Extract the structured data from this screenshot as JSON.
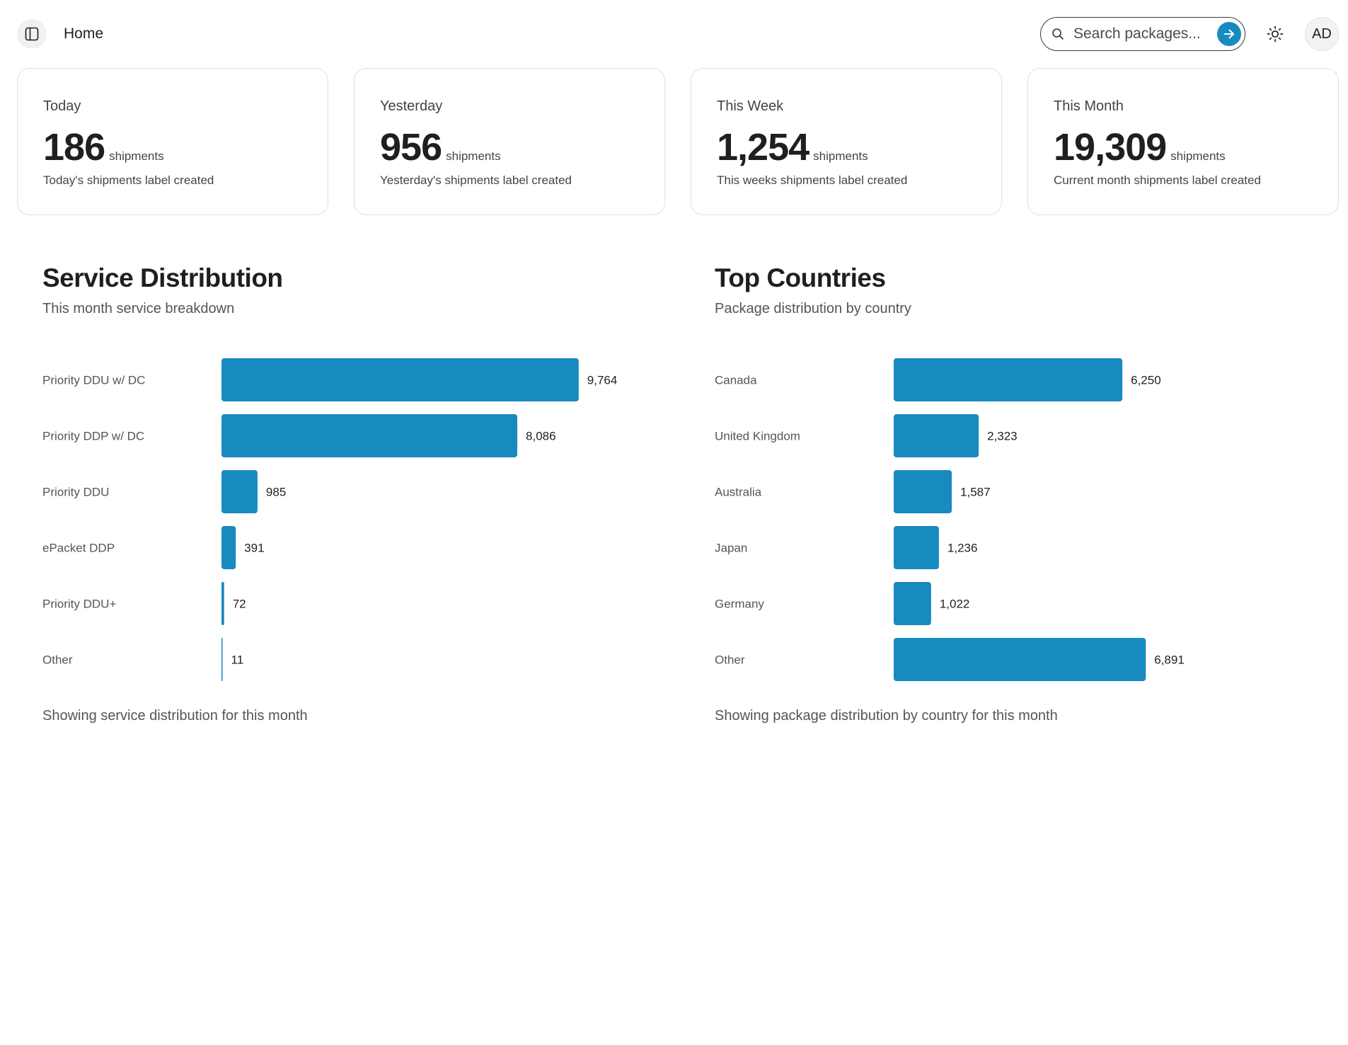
{
  "header": {
    "breadcrumb": "Home",
    "search": {
      "placeholder": "Search packages...",
      "value": ""
    },
    "avatar_initials": "AD",
    "icons": {
      "sidebar_toggle": "sidebar-icon",
      "search": "search-icon",
      "submit": "arrow-right-icon",
      "theme": "sun-icon"
    }
  },
  "stats": [
    {
      "label": "Today",
      "value": "186",
      "unit": "shipments",
      "description": "Today's shipments label created"
    },
    {
      "label": "Yesterday",
      "value": "956",
      "unit": "shipments",
      "description": "Yesterday's shipments label created"
    },
    {
      "label": "This Week",
      "value": "1,254",
      "unit": "shipments",
      "description": "This weeks shipments label created"
    },
    {
      "label": "This Month",
      "value": "19,309",
      "unit": "shipments",
      "description": "Current month shipments label created"
    }
  ],
  "panels": {
    "services": {
      "title": "Service Distribution",
      "subtitle": "This month service breakdown",
      "footer": "Showing service distribution for this month"
    },
    "countries": {
      "title": "Top Countries",
      "subtitle": "Package distribution by country",
      "footer": "Showing package distribution by country for this month"
    }
  },
  "colors": {
    "accent": "#178bbf",
    "bar": "#178bbf"
  },
  "chart_data": [
    {
      "type": "bar",
      "orientation": "horizontal",
      "title": "Service Distribution",
      "categories": [
        "Priority DDU w/ DC",
        "Priority DDP w/ DC",
        "Priority DDU",
        "ePacket DDP",
        "Priority DDU+",
        "Other"
      ],
      "values": [
        9764,
        8086,
        985,
        391,
        72,
        11
      ],
      "value_labels": [
        "9,764",
        "8,086",
        "985",
        "391",
        "72",
        "11"
      ],
      "grid": false
    },
    {
      "type": "bar",
      "orientation": "horizontal",
      "title": "Top Countries",
      "categories": [
        "Canada",
        "United Kingdom",
        "Australia",
        "Japan",
        "Germany",
        "Other"
      ],
      "values": [
        6250,
        2323,
        1587,
        1236,
        1022,
        6891
      ],
      "value_labels": [
        "6,250",
        "2,323",
        "1,587",
        "1,236",
        "1,022",
        "6,891"
      ],
      "grid": false
    }
  ]
}
